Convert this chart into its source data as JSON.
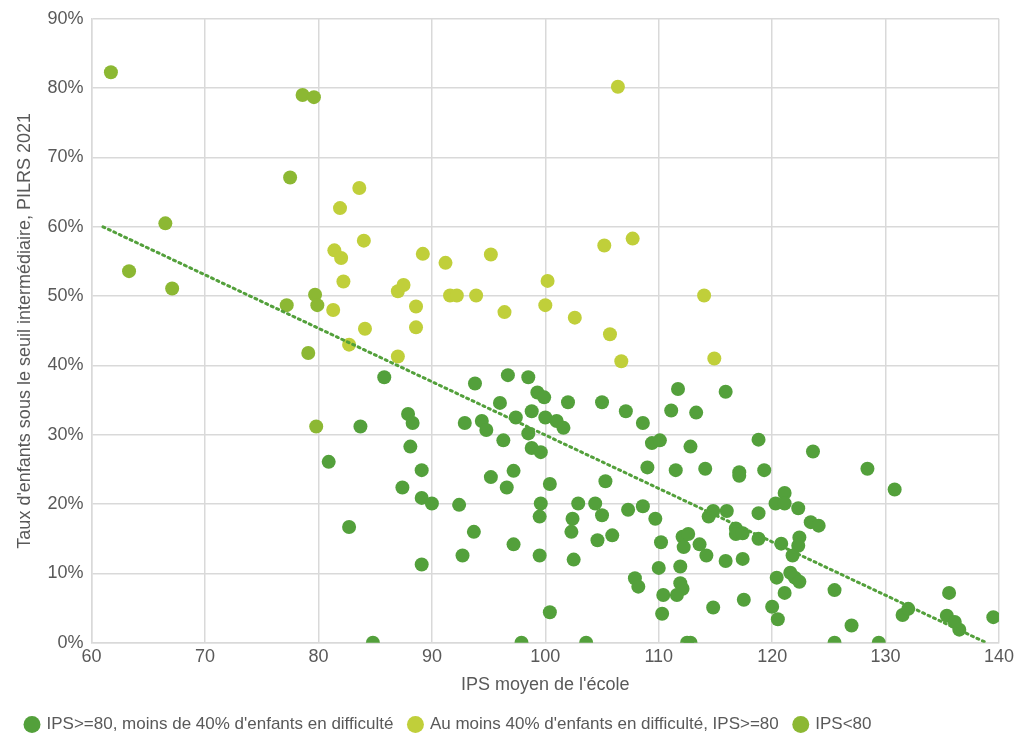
{
  "chart_data": {
    "type": "scatter",
    "xlabel": "IPS moyen de l'école",
    "ylabel": "Taux d'enfants sous le seuil intermédiaire, PILRS 2021",
    "xlim": [
      60,
      140
    ],
    "xticks": [
      60,
      70,
      80,
      90,
      100,
      110,
      120,
      130,
      140
    ],
    "ylim": [
      0,
      90
    ],
    "yticks": [
      {
        "value": 0,
        "label": "0%"
      },
      {
        "value": 10,
        "label": "10%"
      },
      {
        "value": 20,
        "label": "20%"
      },
      {
        "value": 30,
        "label": "30%"
      },
      {
        "value": 40,
        "label": "40%"
      },
      {
        "value": 50,
        "label": "50%"
      },
      {
        "value": 60,
        "label": "60%"
      },
      {
        "value": 70,
        "label": "70%"
      },
      {
        "value": 80,
        "label": "80%"
      },
      {
        "value": 90,
        "label": "90%"
      }
    ],
    "grid": true,
    "legend": "bottom",
    "marker": "circle",
    "series": [
      {
        "name": "IPS>=80, moins de 40% d'enfants en difficulté",
        "color": "#53a03b",
        "x": [
          85.8,
          87.9,
          88.3,
          83.7,
          88.1,
          80.9,
          89.1,
          87.4,
          89.1,
          82.7,
          89.1,
          84.8,
          93.8,
          96.7,
          98.5,
          99.3,
          99.9,
          102.0,
          105.0,
          107.1,
          108.6,
          111.7,
          111.1,
          113.3,
          115.9,
          96.0,
          97.4,
          92.9,
          94.4,
          94.8,
          98.8,
          100.0,
          101.0,
          101.6,
          98.5,
          96.3,
          98.8,
          99.6,
          109.4,
          110.1,
          112.8,
          109.0,
          111.5,
          114.1,
          117.1,
          117.1,
          95.2,
          97.2,
          96.6,
          100.4,
          105.3,
          90.0,
          92.4,
          99.6,
          99.5,
          102.9,
          104.4,
          105.0,
          107.3,
          108.6,
          109.7,
          102.4,
          102.3,
          93.7,
          114.4,
          114.8,
          116.0,
          116.8,
          116.8,
          97.2,
          104.6,
          105.9,
          110.2,
          112.1,
          112.6,
          112.2,
          113.6,
          114.2,
          115.9,
          117.4,
          92.7,
          99.5,
          102.5,
          110.0,
          111.9,
          107.9,
          108.2,
          111.9,
          112.1,
          111.6,
          110.4,
          114.8,
          117.5,
          100.4,
          110.3,
          97.9,
          103.6,
          112.5,
          112.8,
          118.8,
          123.6,
          119.3,
          128.4,
          130.8,
          121.1,
          120.3,
          121.1,
          122.3,
          118.8,
          123.4,
          124.1,
          117.4,
          118.8,
          120.8,
          122.4,
          122.3,
          121.8,
          120.4,
          121.6,
          122.0,
          122.4,
          121.1,
          125.5,
          120.0,
          120.5,
          127.0,
          125.5,
          129.4,
          131.5,
          132.0,
          135.6,
          135.4,
          136.1,
          136.5,
          139.5
        ],
        "values": [
          38.3,
          33.0,
          31.7,
          31.2,
          28.3,
          26.1,
          24.9,
          22.4,
          20.9,
          16.7,
          11.3,
          0,
          37.4,
          38.6,
          38.3,
          36.1,
          35.4,
          34.7,
          34.7,
          33.4,
          31.7,
          36.6,
          33.5,
          33.2,
          36.2,
          34.6,
          32.5,
          31.7,
          32.0,
          30.7,
          33.4,
          32.5,
          32.0,
          31.0,
          30.2,
          29.2,
          28.1,
          27.5,
          28.8,
          29.2,
          28.3,
          25.3,
          24.9,
          25.1,
          24.6,
          24.1,
          23.9,
          24.8,
          22.4,
          22.9,
          23.3,
          20.1,
          19.9,
          20.1,
          18.2,
          20.1,
          20.1,
          18.4,
          19.2,
          19.7,
          17.9,
          17.9,
          16.0,
          16.0,
          18.2,
          19.0,
          19.0,
          16.5,
          15.7,
          14.2,
          14.8,
          15.5,
          14.5,
          15.3,
          15.7,
          13.8,
          14.2,
          12.6,
          11.8,
          12.1,
          12.6,
          12.6,
          12.0,
          10.8,
          11.0,
          9.3,
          8.1,
          8.6,
          7.8,
          6.9,
          6.9,
          5.1,
          6.2,
          4.4,
          4.2,
          0,
          0,
          0,
          0,
          29.3,
          27.6,
          24.9,
          25.1,
          22.1,
          21.6,
          20.1,
          20.1,
          19.4,
          18.7,
          17.4,
          16.9,
          15.8,
          15.0,
          14.3,
          15.2,
          14.0,
          12.6,
          9.4,
          10.1,
          9.4,
          8.8,
          7.2,
          7.6,
          5.2,
          3.4,
          2.5,
          0,
          0,
          4.0,
          4.9,
          7.2,
          3.9,
          3.0,
          1.9,
          3.7
        ]
      },
      {
        "name": "Au moins 40% d'enfants en difficulté, IPS>=80",
        "color": "#c0cf3a",
        "x": [
          81.3,
          81.9,
          83.6,
          84.0,
          81.4,
          82.0,
          82.2,
          84.1,
          82.7,
          87.0,
          87.5,
          88.6,
          88.6,
          87.0,
          89.2,
          91.2,
          91.6,
          92.2,
          93.9,
          96.4,
          95.2,
          100.2,
          100.0,
          102.6,
          105.2,
          107.7,
          105.7,
          106.7,
          106.4,
          114.0,
          114.9
        ],
        "values": [
          48.0,
          62.7,
          65.6,
          58.0,
          56.6,
          55.5,
          52.1,
          45.3,
          43.0,
          50.7,
          51.6,
          48.5,
          45.5,
          41.3,
          56.1,
          54.8,
          50.1,
          50.1,
          50.1,
          47.7,
          56.0,
          52.2,
          48.7,
          46.9,
          57.3,
          58.3,
          44.5,
          40.6,
          80.2,
          50.1,
          41.0
        ]
      },
      {
        "name": "IPS<80",
        "color": "#8cb833",
        "x": [
          61.7,
          63.3,
          66.5,
          67.1,
          77.2,
          77.5,
          78.6,
          79.6,
          79.1,
          79.7,
          79.9,
          79.8
        ],
        "values": [
          82.3,
          53.6,
          60.5,
          51.1,
          48.7,
          67.1,
          79.0,
          78.7,
          41.8,
          50.2,
          48.7,
          31.2
        ]
      },
      {
        "type": "line",
        "color": "#53a03b",
        "line_style": "dotted",
        "marker": "none",
        "x": [
          61,
          138.9
        ],
        "values": [
          60,
          0
        ]
      }
    ]
  }
}
